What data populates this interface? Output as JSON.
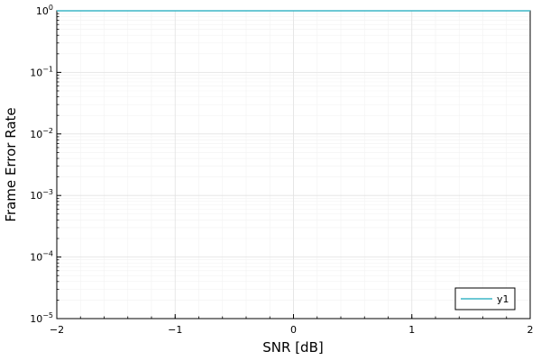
{
  "chart_data": {
    "type": "line",
    "title": "",
    "xlabel": "SNR [dB]",
    "ylabel": "Frame Error Rate",
    "xlim": [
      -2,
      2
    ],
    "ylim": [
      1e-05,
      1
    ],
    "yscale": "log",
    "grid": true,
    "legend_position": "bottom-right",
    "x_ticks": [
      {
        "value": -2,
        "label": "−2"
      },
      {
        "value": -1,
        "label": "−1"
      },
      {
        "value": 0,
        "label": "0"
      },
      {
        "value": 1,
        "label": "1"
      },
      {
        "value": 2,
        "label": "2"
      }
    ],
    "y_ticks": [
      {
        "value": 1e-05,
        "base": "10",
        "exp": "−5"
      },
      {
        "value": 0.0001,
        "base": "10",
        "exp": "−4"
      },
      {
        "value": 0.001,
        "base": "10",
        "exp": "−3"
      },
      {
        "value": 0.01,
        "base": "10",
        "exp": "−2"
      },
      {
        "value": 0.1,
        "base": "10",
        "exp": "−1"
      },
      {
        "value": 1,
        "base": "10",
        "exp": "0"
      }
    ],
    "series": [
      {
        "name": "y1",
        "color": "#3bb6c6",
        "x": [
          -2,
          -1,
          0,
          1,
          2
        ],
        "y": [
          1,
          1,
          1,
          1,
          1
        ]
      }
    ]
  }
}
